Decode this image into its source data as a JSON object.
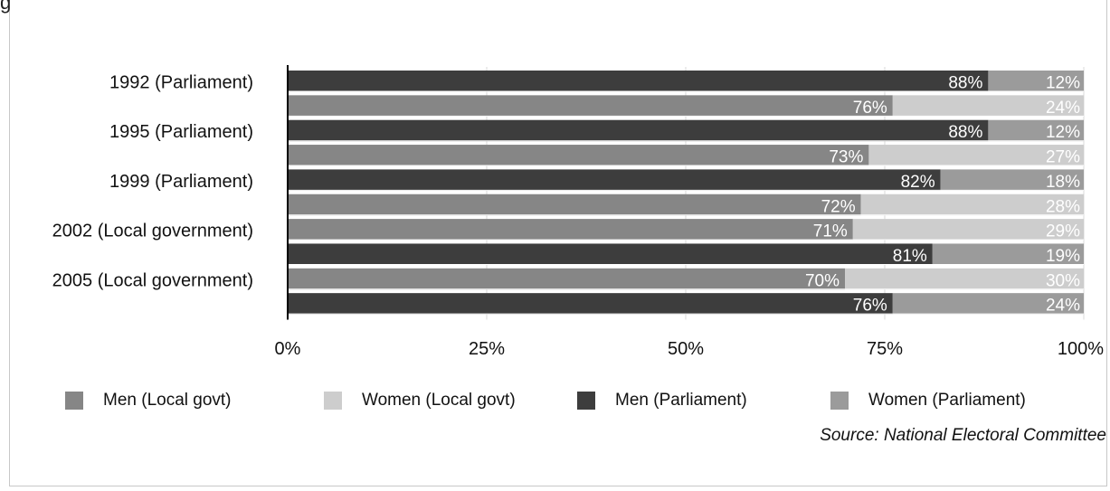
{
  "figure": {
    "corner_text": "g",
    "source": "Source: National Electoral Committee"
  },
  "colors": {
    "men_local": "#868686",
    "women_local": "#cdcdcd",
    "men_parliament": "#3d3d3d",
    "women_parliament": "#9b9b9b"
  },
  "chart_data": {
    "type": "bar",
    "orientation": "horizontal",
    "stacked": true,
    "percent": true,
    "xlim": [
      0,
      100
    ],
    "xticks": [
      "0%",
      "25%",
      "50%",
      "75%",
      "100%"
    ],
    "category_labels": [
      "1992 (Parliament)",
      "1995 (Parliament)",
      "1999 (Parliament)",
      "2002 (Local government)",
      "2005 (Local government)"
    ],
    "rows": [
      {
        "label_index": 0,
        "kind": "parliament",
        "men": 88,
        "women": 12
      },
      {
        "label_index": null,
        "kind": "local",
        "men": 76,
        "women": 24
      },
      {
        "label_index": 1,
        "kind": "parliament",
        "men": 88,
        "women": 12
      },
      {
        "label_index": null,
        "kind": "local",
        "men": 73,
        "women": 27
      },
      {
        "label_index": 2,
        "kind": "parliament",
        "men": 82,
        "women": 18
      },
      {
        "label_index": null,
        "kind": "local",
        "men": 72,
        "women": 28
      },
      {
        "label_index": 3,
        "kind": "local",
        "men": 71,
        "women": 29
      },
      {
        "label_index": null,
        "kind": "parliament",
        "men": 81,
        "women": 19
      },
      {
        "label_index": 4,
        "kind": "local",
        "men": 70,
        "women": 30
      },
      {
        "label_index": null,
        "kind": "parliament",
        "men": 76,
        "women": 24
      }
    ],
    "legend": [
      {
        "name": "Men (Local govt)",
        "color_key": "men_local"
      },
      {
        "name": "Women (Local govt)",
        "color_key": "women_local"
      },
      {
        "name": "Men (Parliament)",
        "color_key": "men_parliament"
      },
      {
        "name": "Women (Parliament)",
        "color_key": "women_parliament"
      }
    ],
    "legend_position": "bottom",
    "grid": true
  }
}
